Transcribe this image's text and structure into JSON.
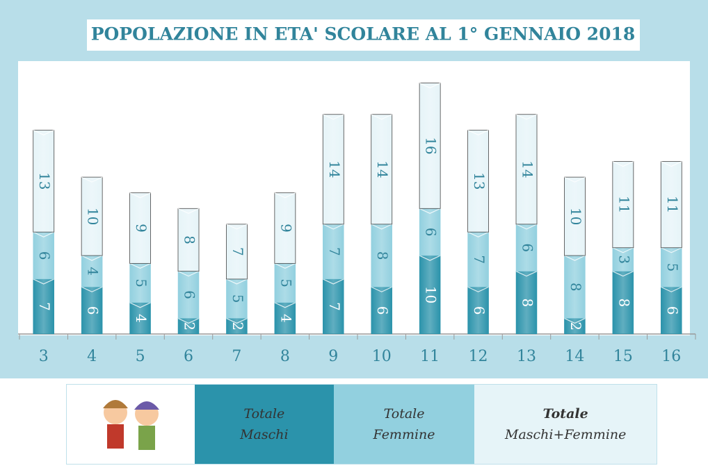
{
  "chart_data": {
    "type": "stacked_bar",
    "title": "POPOLAZIONE  IN ETA' SCOLARE AL 1° GENNAIO 2018",
    "categories": [
      "3",
      "4",
      "5",
      "6",
      "7",
      "8",
      "9",
      "10",
      "11",
      "12",
      "13",
      "14",
      "15",
      "16"
    ],
    "series": [
      {
        "name": "Totale Maschi",
        "color": "#2b93ab",
        "values": [
          7,
          6,
          4,
          2,
          2,
          4,
          7,
          6,
          10,
          6,
          8,
          2,
          8,
          6
        ]
      },
      {
        "name": "Totale Femmine",
        "color": "#92d0df",
        "values": [
          6,
          4,
          5,
          6,
          5,
          5,
          7,
          8,
          6,
          7,
          6,
          8,
          3,
          5
        ]
      },
      {
        "name": "Totale Maschi+Femmine",
        "color": "#e6f4f8",
        "values": [
          13,
          10,
          9,
          8,
          7,
          9,
          14,
          14,
          16,
          13,
          14,
          10,
          11,
          11
        ]
      }
    ],
    "ylim": [
      0,
      34
    ]
  }
}
